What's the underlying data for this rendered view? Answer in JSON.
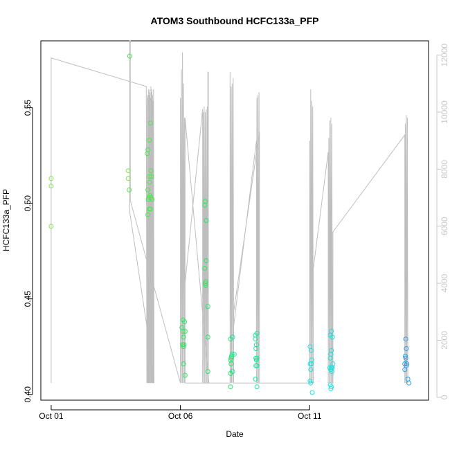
{
  "chart_data": {
    "type": "scatter",
    "title": "ATOM3 Southbound HCFC133a_PFP",
    "xlabel": "Date",
    "ylabel": "HCFC133a_PFP",
    "x_ticks": [
      {
        "label": "Oct 01",
        "day": 1.0
      },
      {
        "label": "Oct 06",
        "day": 6.0
      },
      {
        "label": "Oct 11",
        "day": 11.0
      }
    ],
    "xlim": [
      0.6,
      15.6
    ],
    "ylim": [
      0.397,
      0.585
    ],
    "y_ticks": [
      0.4,
      0.45,
      0.5,
      0.55
    ],
    "y_tick_labels": [
      "0.40",
      "0.45",
      "0.50",
      "0.55"
    ],
    "y2lim": [
      -100,
      12500
    ],
    "y2_ticks": [
      0,
      2000,
      4000,
      6000,
      8000,
      10000,
      12000
    ],
    "y2_tick_labels": [
      "0",
      "2000",
      "4000",
      "6000",
      "8000",
      "10000",
      "12000"
    ],
    "points": [
      [
        1.0,
        0.513
      ],
      [
        1.0,
        0.509
      ],
      [
        1.0,
        0.488
      ],
      [
        4.04,
        0.577
      ],
      [
        3.98,
        0.517
      ],
      [
        3.98,
        0.513
      ],
      [
        4.02,
        0.507
      ],
      [
        4.84,
        0.542
      ],
      [
        4.8,
        0.533
      ],
      [
        4.74,
        0.528
      ],
      [
        4.72,
        0.526
      ],
      [
        4.86,
        0.517
      ],
      [
        4.8,
        0.514
      ],
      [
        4.88,
        0.514
      ],
      [
        4.8,
        0.511
      ],
      [
        4.74,
        0.507
      ],
      [
        4.82,
        0.504
      ],
      [
        4.86,
        0.503
      ],
      [
        4.78,
        0.503
      ],
      [
        4.9,
        0.502
      ],
      [
        4.76,
        0.502
      ],
      [
        4.84,
        0.497
      ],
      [
        4.8,
        0.497
      ],
      [
        4.74,
        0.494
      ],
      [
        6.1,
        0.439
      ],
      [
        6.16,
        0.438
      ],
      [
        6.06,
        0.435
      ],
      [
        6.1,
        0.433
      ],
      [
        6.18,
        0.433
      ],
      [
        6.12,
        0.43
      ],
      [
        6.08,
        0.426
      ],
      [
        6.14,
        0.426
      ],
      [
        6.12,
        0.425
      ],
      [
        6.12,
        0.416
      ],
      [
        6.18,
        0.41
      ],
      [
        6.96,
        0.501
      ],
      [
        6.94,
        0.499
      ],
      [
        7.0,
        0.491
      ],
      [
        7.0,
        0.47
      ],
      [
        6.94,
        0.466
      ],
      [
        6.98,
        0.459
      ],
      [
        6.96,
        0.458
      ],
      [
        6.98,
        0.457
      ],
      [
        7.06,
        0.446
      ],
      [
        7.06,
        0.43
      ],
      [
        7.06,
        0.412
      ],
      [
        8.02,
        0.43
      ],
      [
        7.94,
        0.429
      ],
      [
        8.08,
        0.421
      ],
      [
        8.0,
        0.421
      ],
      [
        7.98,
        0.42
      ],
      [
        7.96,
        0.419
      ],
      [
        7.94,
        0.418
      ],
      [
        7.96,
        0.416
      ],
      [
        8.02,
        0.412
      ],
      [
        7.94,
        0.411
      ],
      [
        7.94,
        0.404
      ],
      [
        8.96,
        0.432
      ],
      [
        8.9,
        0.431
      ],
      [
        8.9,
        0.429
      ],
      [
        8.94,
        0.426
      ],
      [
        8.92,
        0.424
      ],
      [
        8.96,
        0.419
      ],
      [
        8.92,
        0.419
      ],
      [
        8.94,
        0.418
      ],
      [
        8.92,
        0.415
      ],
      [
        8.96,
        0.415
      ],
      [
        8.9,
        0.408
      ],
      [
        8.96,
        0.404
      ],
      [
        11.02,
        0.425
      ],
      [
        11.06,
        0.423
      ],
      [
        11.08,
        0.418
      ],
      [
        11.02,
        0.416
      ],
      [
        11.06,
        0.416
      ],
      [
        11.04,
        0.413
      ],
      [
        11.02,
        0.407
      ],
      [
        11.04,
        0.406
      ],
      [
        11.1,
        0.401
      ],
      [
        11.84,
        0.433
      ],
      [
        11.8,
        0.431
      ],
      [
        11.88,
        0.43
      ],
      [
        11.84,
        0.423
      ],
      [
        11.82,
        0.421
      ],
      [
        11.8,
        0.419
      ],
      [
        11.9,
        0.416
      ],
      [
        11.84,
        0.414
      ],
      [
        11.88,
        0.414
      ],
      [
        11.78,
        0.414
      ],
      [
        11.82,
        0.413
      ],
      [
        11.86,
        0.412
      ],
      [
        11.8,
        0.405
      ],
      [
        11.84,
        0.404
      ],
      [
        11.82,
        0.403
      ],
      [
        14.72,
        0.429
      ],
      [
        14.74,
        0.424
      ],
      [
        14.7,
        0.42
      ],
      [
        14.72,
        0.419
      ],
      [
        14.68,
        0.416
      ],
      [
        14.76,
        0.416
      ],
      [
        14.74,
        0.415
      ],
      [
        14.68,
        0.413
      ],
      [
        14.8,
        0.408
      ],
      [
        14.84,
        0.406
      ]
    ],
    "altitude": [
      [
        1.0,
        500
      ],
      [
        1.0,
        11900
      ],
      [
        4.68,
        10900
      ],
      [
        4.7,
        500
      ],
      [
        4.7,
        6600
      ],
      [
        4.72,
        500
      ],
      [
        4.72,
        10600
      ],
      [
        4.74,
        500
      ],
      [
        4.74,
        10500
      ],
      [
        4.76,
        500
      ],
      [
        4.76,
        10800
      ],
      [
        4.78,
        500
      ],
      [
        4.78,
        10600
      ],
      [
        4.8,
        500
      ],
      [
        4.8,
        10700
      ],
      [
        4.82,
        500
      ],
      [
        4.82,
        10800
      ],
      [
        4.84,
        500
      ],
      [
        4.84,
        10500
      ],
      [
        4.86,
        500
      ],
      [
        4.86,
        10900
      ],
      [
        4.88,
        500
      ],
      [
        4.88,
        10700
      ],
      [
        4.9,
        500
      ],
      [
        4.9,
        10800
      ],
      [
        4.92,
        500
      ],
      [
        4.92,
        10600
      ],
      [
        4.94,
        500
      ],
      [
        4.94,
        10400
      ],
      [
        4.96,
        500
      ],
      [
        4.96,
        10800
      ],
      [
        4.98,
        500
      ],
      [
        4.98,
        800
      ],
      [
        4.04,
        6500
      ],
      [
        4.04,
        12500
      ],
      [
        4.06,
        12500
      ],
      [
        4.06,
        6900
      ],
      [
        6.0,
        500
      ],
      [
        6.0,
        10500
      ],
      [
        6.04,
        500
      ],
      [
        6.04,
        11500
      ],
      [
        6.08,
        500
      ],
      [
        6.08,
        12100
      ],
      [
        6.12,
        500
      ],
      [
        6.12,
        11000
      ],
      [
        6.16,
        500
      ],
      [
        6.16,
        9800
      ],
      [
        6.18,
        4000
      ],
      [
        6.86,
        10100
      ],
      [
        6.86,
        500
      ],
      [
        6.88,
        10000
      ],
      [
        6.9,
        500
      ],
      [
        6.92,
        10200
      ],
      [
        6.94,
        500
      ],
      [
        6.96,
        10000
      ],
      [
        6.98,
        500
      ],
      [
        7.0,
        10100
      ],
      [
        7.02,
        500
      ],
      [
        7.04,
        10200
      ],
      [
        7.06,
        500
      ],
      [
        7.06,
        11400
      ],
      [
        7.08,
        11400
      ],
      [
        7.08,
        500
      ],
      [
        7.1,
        500
      ],
      [
        6.18,
        9800
      ],
      [
        6.18,
        500
      ],
      [
        7.92,
        500
      ],
      [
        7.92,
        11400
      ],
      [
        7.94,
        500
      ],
      [
        7.96,
        10900
      ],
      [
        7.98,
        500
      ],
      [
        8.0,
        11000
      ],
      [
        8.02,
        500
      ],
      [
        8.04,
        11200
      ],
      [
        8.06,
        500
      ],
      [
        8.06,
        2500
      ],
      [
        8.94,
        9000
      ],
      [
        8.94,
        500
      ],
      [
        8.96,
        10500
      ],
      [
        8.98,
        500
      ],
      [
        9.0,
        10600
      ],
      [
        9.02,
        500
      ],
      [
        9.04,
        10700
      ],
      [
        9.06,
        500
      ],
      [
        9.06,
        9300
      ],
      [
        8.06,
        3000
      ],
      [
        8.06,
        500
      ],
      [
        11.0,
        500
      ],
      [
        11.0,
        9000
      ],
      [
        11.02,
        500
      ],
      [
        11.04,
        10800
      ],
      [
        11.06,
        500
      ],
      [
        11.08,
        10400
      ],
      [
        11.1,
        500
      ],
      [
        11.12,
        10200
      ],
      [
        11.14,
        500
      ],
      [
        11.14,
        4500
      ],
      [
        11.72,
        8600
      ],
      [
        11.72,
        500
      ],
      [
        11.74,
        9100
      ],
      [
        11.76,
        500
      ],
      [
        11.78,
        9700
      ],
      [
        11.8,
        500
      ],
      [
        11.82,
        9800
      ],
      [
        11.84,
        500
      ],
      [
        11.86,
        9600
      ],
      [
        11.88,
        500
      ],
      [
        11.9,
        500
      ],
      [
        11.9,
        5800
      ],
      [
        14.68,
        9200
      ],
      [
        14.68,
        500
      ],
      [
        14.7,
        9600
      ],
      [
        14.72,
        500
      ],
      [
        14.74,
        9900
      ],
      [
        14.76,
        500
      ],
      [
        14.78,
        9800
      ],
      [
        14.8,
        500
      ]
    ],
    "altitude_color": "#bebebe",
    "point_colors": {
      "Oct 01": "#7fe64d",
      "Oct 04": "#4ce64d",
      "Oct 05": "#3ee653",
      "Oct 06": "#2fe65e",
      "Oct 07": "#22e66c",
      "Oct 08": "#18e699",
      "Oct 09": "#1ae6b3",
      "Oct 11": "#1ae0e0",
      "Oct 12": "#1ad2e6",
      "Oct 14": "#2a9ce6"
    },
    "grid": false,
    "legend": "none"
  }
}
